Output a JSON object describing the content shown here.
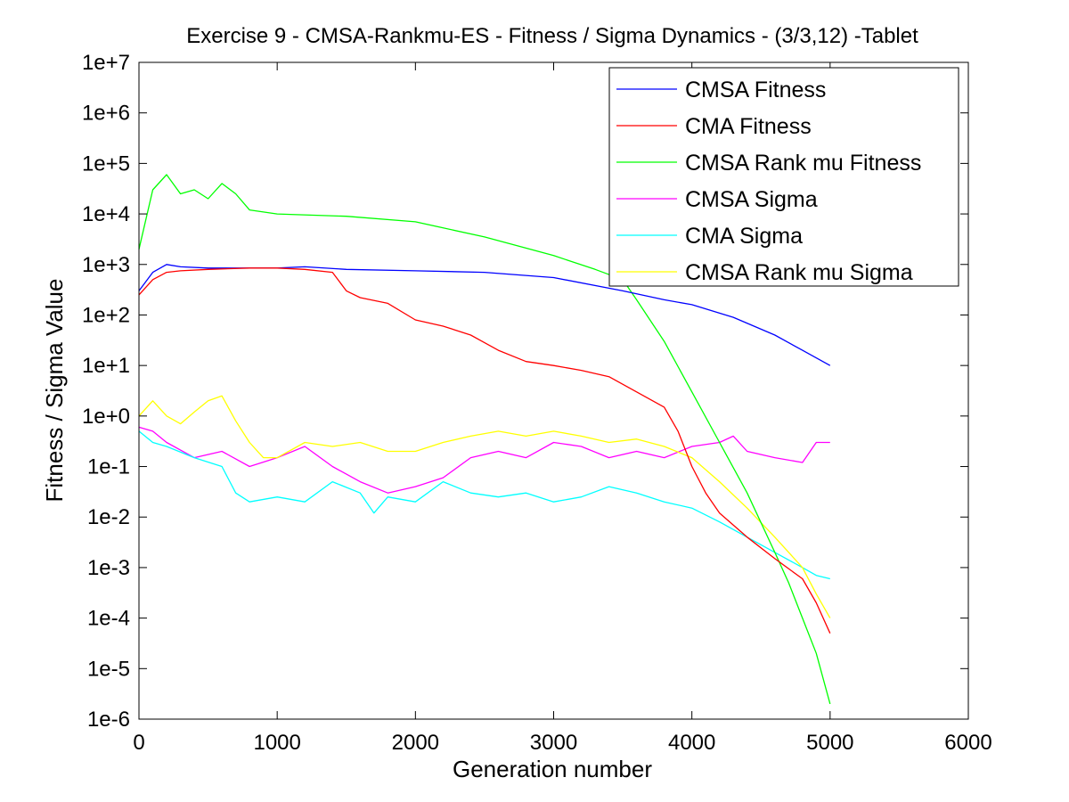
{
  "chart_data": {
    "type": "line",
    "title": "Exercise 9 - CMSA-Rankmu-ES - Fitness / Sigma Dynamics - (3/3,12) -Tablet",
    "xlabel": "Generation number",
    "ylabel": "Fitness / Sigma Value",
    "xlim": [
      0,
      6000
    ],
    "ylim": [
      1e-06,
      10000000.0
    ],
    "yscale": "log",
    "x_ticks": [
      "0",
      "1000",
      "2000",
      "3000",
      "4000",
      "5000",
      "6000"
    ],
    "y_ticks": [
      "1e-6",
      "1e-5",
      "1e-4",
      "1e-3",
      "1e-2",
      "1e-1",
      "1e+0",
      "1e+1",
      "1e+2",
      "1e+3",
      "1e+4",
      "1e+5",
      "1e+6",
      "1e+7"
    ],
    "grid": false,
    "legend_position": "top-right",
    "series": [
      {
        "name": "CMSA Fitness",
        "color": "#0000ff",
        "x": [
          0,
          100,
          200,
          300,
          500,
          800,
          1000,
          1200,
          1500,
          2000,
          2500,
          3000,
          3500,
          3800,
          4000,
          4300,
          4600,
          4800,
          5000
        ],
        "y": [
          300,
          700,
          1000,
          900,
          850,
          850,
          850,
          900,
          800,
          750,
          700,
          550,
          300,
          200,
          160,
          90,
          40,
          20,
          10
        ]
      },
      {
        "name": "CMA Fitness",
        "color": "#ff0000",
        "x": [
          0,
          100,
          200,
          300,
          500,
          800,
          1000,
          1200,
          1400,
          1500,
          1600,
          1800,
          2000,
          2200,
          2400,
          2600,
          2800,
          3000,
          3200,
          3400,
          3600,
          3800,
          3900,
          4000,
          4100,
          4200,
          4400,
          4600,
          4800,
          4900,
          5000
        ],
        "y": [
          250,
          500,
          700,
          750,
          800,
          850,
          850,
          800,
          700,
          300,
          220,
          170,
          80,
          60,
          40,
          20,
          12,
          10,
          8,
          6,
          3,
          1.5,
          0.5,
          0.1,
          0.03,
          0.012,
          0.004,
          0.0015,
          0.0006,
          0.0002,
          5e-05
        ]
      },
      {
        "name": "CMSA Rank mu Fitness",
        "color": "#00ff00",
        "x": [
          0,
          100,
          200,
          300,
          400,
          500,
          600,
          700,
          800,
          1000,
          1500,
          2000,
          2500,
          3000,
          3300,
          3500,
          3600,
          3800,
          4000,
          4200,
          4400,
          4600,
          4700,
          4800,
          4900,
          5000
        ],
        "y": [
          2000,
          30000,
          60000,
          25000,
          30000,
          20000,
          40000,
          25000,
          12000,
          10000,
          9000,
          7000,
          3500,
          1500,
          800,
          500,
          200,
          30,
          3,
          0.3,
          0.03,
          0.002,
          0.0005,
          0.0001,
          2e-05,
          2e-06
        ]
      },
      {
        "name": "CMSA Sigma",
        "color": "#ff00ff",
        "x": [
          0,
          100,
          200,
          400,
          600,
          800,
          1000,
          1200,
          1400,
          1600,
          1800,
          2000,
          2200,
          2400,
          2600,
          2800,
          3000,
          3200,
          3400,
          3600,
          3800,
          4000,
          4200,
          4300,
          4400,
          4600,
          4800,
          4900,
          5000
        ],
        "y": [
          0.6,
          0.5,
          0.3,
          0.15,
          0.2,
          0.1,
          0.15,
          0.25,
          0.1,
          0.05,
          0.03,
          0.04,
          0.06,
          0.15,
          0.2,
          0.15,
          0.3,
          0.25,
          0.15,
          0.2,
          0.15,
          0.25,
          0.3,
          0.4,
          0.2,
          0.15,
          0.12,
          0.3,
          0.3
        ]
      },
      {
        "name": "CMA Sigma",
        "color": "#00ffff",
        "x": [
          0,
          100,
          200,
          400,
          600,
          700,
          800,
          1000,
          1200,
          1400,
          1600,
          1700,
          1800,
          2000,
          2200,
          2400,
          2600,
          2800,
          3000,
          3200,
          3400,
          3600,
          3800,
          4000,
          4200,
          4400,
          4600,
          4800,
          4900,
          5000
        ],
        "y": [
          0.5,
          0.3,
          0.25,
          0.15,
          0.1,
          0.03,
          0.02,
          0.025,
          0.02,
          0.05,
          0.03,
          0.012,
          0.025,
          0.02,
          0.05,
          0.03,
          0.025,
          0.03,
          0.02,
          0.025,
          0.04,
          0.03,
          0.02,
          0.015,
          0.008,
          0.004,
          0.002,
          0.001,
          0.0007,
          0.0006
        ]
      },
      {
        "name": "CMSA Rank mu Sigma",
        "color": "#ffff00",
        "x": [
          0,
          100,
          200,
          300,
          400,
          500,
          600,
          700,
          800,
          900,
          1000,
          1200,
          1400,
          1600,
          1800,
          2000,
          2200,
          2400,
          2600,
          2800,
          3000,
          3200,
          3400,
          3600,
          3800,
          4000,
          4200,
          4400,
          4600,
          4800,
          4900,
          5000
        ],
        "y": [
          1.0,
          2.0,
          1.0,
          0.7,
          1.2,
          2.0,
          2.5,
          0.8,
          0.3,
          0.15,
          0.15,
          0.3,
          0.25,
          0.3,
          0.2,
          0.2,
          0.3,
          0.4,
          0.5,
          0.4,
          0.5,
          0.4,
          0.3,
          0.35,
          0.25,
          0.15,
          0.05,
          0.015,
          0.004,
          0.001,
          0.0003,
          0.0001
        ]
      }
    ]
  }
}
